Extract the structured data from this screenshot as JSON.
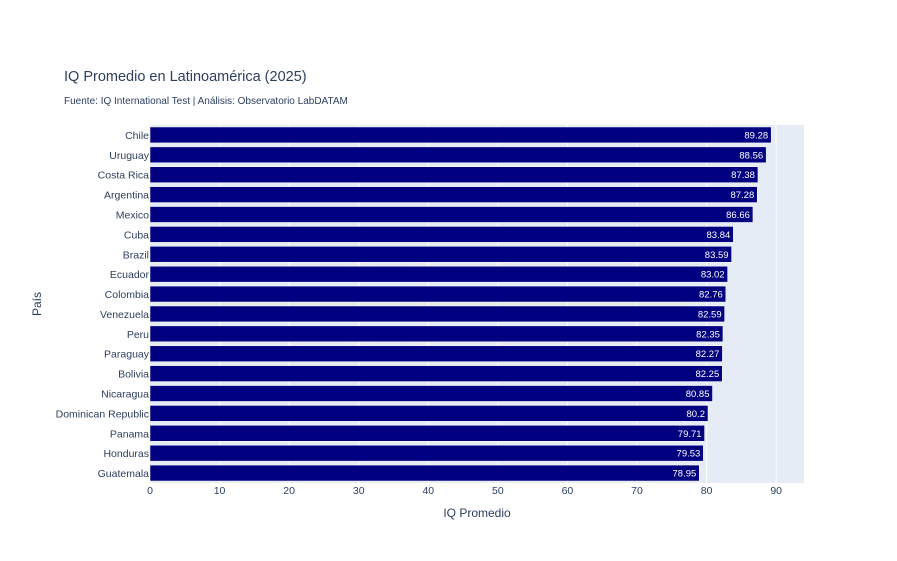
{
  "chart_data": {
    "type": "bar",
    "orientation": "horizontal",
    "title": "IQ Promedio en Latinoamérica (2025)",
    "subtitle": "Fuente: IQ International Test | Análisis: Observatorio LabDATAM",
    "xlabel": "IQ Promedio",
    "ylabel": "País",
    "xlim": [
      0,
      94
    ],
    "xticks": [
      0,
      10,
      20,
      30,
      40,
      50,
      60,
      70,
      80,
      90
    ],
    "grid": true,
    "bar_color": "#000080",
    "plot_bg": "#e5ecf6",
    "categories": [
      "Chile",
      "Uruguay",
      "Costa Rica",
      "Argentina",
      "Mexico",
      "Cuba",
      "Brazil",
      "Ecuador",
      "Colombia",
      "Venezuela",
      "Peru",
      "Paraguay",
      "Bolivia",
      "Nicaragua",
      "Dominican Republic",
      "Panama",
      "Honduras",
      "Guatemala"
    ],
    "values": [
      89.28,
      88.56,
      87.38,
      87.28,
      86.66,
      83.84,
      83.59,
      83.02,
      82.76,
      82.59,
      82.35,
      82.27,
      82.25,
      80.85,
      80.2,
      79.71,
      79.53,
      78.95
    ],
    "value_labels": [
      "89.28",
      "88.56",
      "87.38",
      "87.28",
      "86.66",
      "83.84",
      "83.59",
      "83.02",
      "82.76",
      "82.59",
      "82.35",
      "82.27",
      "82.25",
      "80.85",
      "80.2",
      "79.71",
      "79.53",
      "78.95"
    ]
  }
}
